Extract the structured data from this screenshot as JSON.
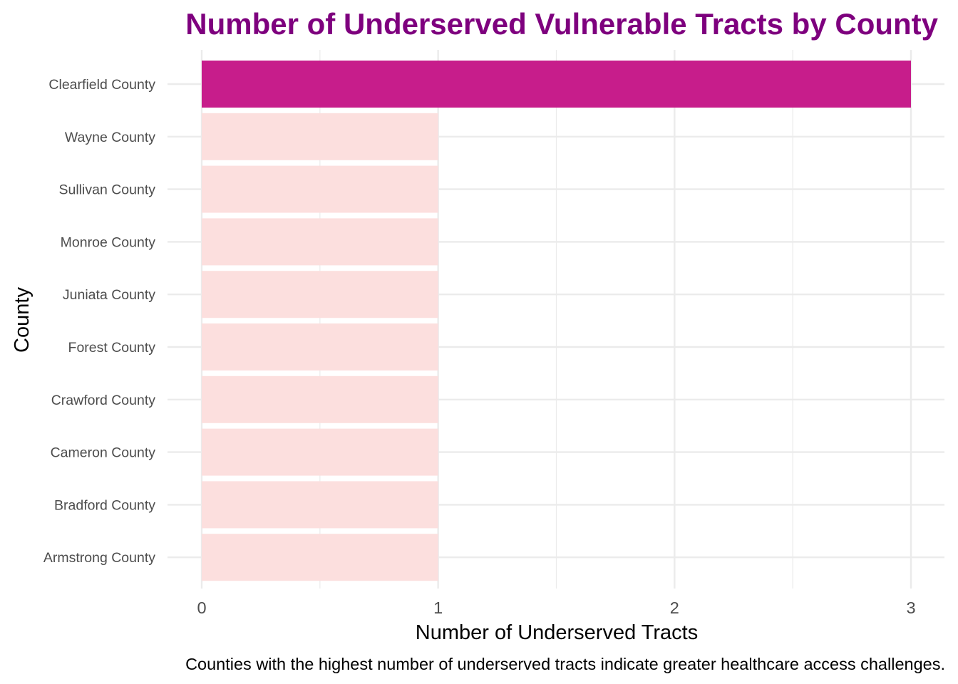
{
  "chart_data": {
    "type": "bar",
    "orientation": "horizontal",
    "title": "Number of Underserved Vulnerable Tracts by County",
    "xlabel": "Number of Underserved Tracts",
    "ylabel": "County",
    "caption": "Counties with the highest number of underserved tracts indicate greater healthcare access challenges.",
    "categories": [
      "Clearfield County",
      "Wayne County",
      "Sullivan County",
      "Monroe County",
      "Juniata County",
      "Forest County",
      "Crawford County",
      "Cameron County",
      "Bradford County",
      "Armstrong County"
    ],
    "values": [
      3,
      1,
      1,
      1,
      1,
      1,
      1,
      1,
      1,
      1
    ],
    "xlim": [
      0,
      3
    ],
    "xticks": [
      "0",
      "1",
      "2",
      "3"
    ],
    "grid": true,
    "legend": "none",
    "colors": {
      "highlight_bar": "#c71d8b",
      "bar": "#fcdfde",
      "title": "#7e007e",
      "grid": "#ebebeb",
      "tick_text": "#4d4d4d",
      "axis_title": "#000000"
    }
  }
}
